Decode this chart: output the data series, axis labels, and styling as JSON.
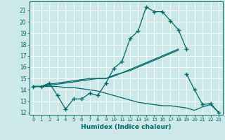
{
  "xlabel": "Humidex (Indice chaleur)",
  "xlim": [
    -0.5,
    23.5
  ],
  "ylim": [
    11.8,
    21.8
  ],
  "yticks": [
    12,
    13,
    14,
    15,
    16,
    17,
    18,
    19,
    20,
    21
  ],
  "xticks": [
    0,
    1,
    2,
    3,
    4,
    5,
    6,
    7,
    8,
    9,
    10,
    11,
    12,
    13,
    14,
    15,
    16,
    17,
    18,
    19,
    20,
    21,
    22,
    23
  ],
  "bg_color": "#cde8e8",
  "grid_color": "#b0d4d4",
  "line_color": "#006666",
  "series": [
    {
      "x": [
        0,
        1,
        2,
        3,
        4,
        5,
        6,
        7,
        8,
        9,
        10,
        11,
        12,
        13,
        14,
        15,
        16,
        17,
        18,
        19
      ],
      "y": [
        14.3,
        14.3,
        14.6,
        13.5,
        12.3,
        13.2,
        13.2,
        13.7,
        13.5,
        14.6,
        15.9,
        16.5,
        18.5,
        19.2,
        21.3,
        20.9,
        20.9,
        20.1,
        19.3,
        17.6
      ],
      "marker": "+",
      "markersize": 4,
      "linewidth": 0.9
    },
    {
      "x": [
        0,
        1,
        2,
        3,
        4,
        5,
        6,
        7,
        8,
        9,
        10,
        11,
        12,
        13,
        14,
        15,
        16,
        17,
        18
      ],
      "y": [
        14.3,
        14.3,
        14.5,
        14.6,
        14.7,
        14.8,
        14.9,
        15.0,
        15.0,
        15.0,
        15.3,
        15.5,
        15.8,
        16.1,
        16.4,
        16.7,
        17.0,
        17.3,
        17.6
      ],
      "marker": null,
      "linewidth": 0.9
    },
    {
      "x": [
        0,
        1,
        2,
        3,
        4,
        5,
        6,
        7,
        8,
        9,
        10,
        11,
        12,
        13,
        14,
        15,
        16,
        17,
        18,
        19,
        20,
        21,
        22,
        23
      ],
      "y": [
        14.3,
        14.3,
        14.3,
        14.3,
        14.2,
        14.2,
        14.1,
        14.0,
        13.9,
        13.7,
        13.5,
        13.3,
        13.1,
        12.9,
        12.8,
        12.7,
        12.6,
        12.6,
        12.5,
        12.4,
        12.2,
        12.5,
        12.7,
        12.0
      ],
      "marker": null,
      "linewidth": 0.9
    },
    {
      "x": [
        0,
        1,
        2,
        3,
        4,
        5,
        6,
        7,
        8,
        9,
        10,
        11,
        12,
        13,
        14,
        15,
        16,
        17,
        18
      ],
      "y": [
        14.3,
        14.3,
        14.4,
        14.5,
        14.6,
        14.7,
        14.8,
        14.9,
        15.0,
        15.0,
        15.2,
        15.5,
        15.7,
        16.0,
        16.3,
        16.6,
        16.9,
        17.2,
        17.5
      ],
      "marker": null,
      "linewidth": 0.9
    },
    {
      "x": [
        19,
        20,
        21,
        22,
        23
      ],
      "y": [
        15.4,
        14.0,
        12.7,
        12.8,
        12.0
      ],
      "marker": "+",
      "markersize": 4,
      "linewidth": 0.9
    }
  ]
}
